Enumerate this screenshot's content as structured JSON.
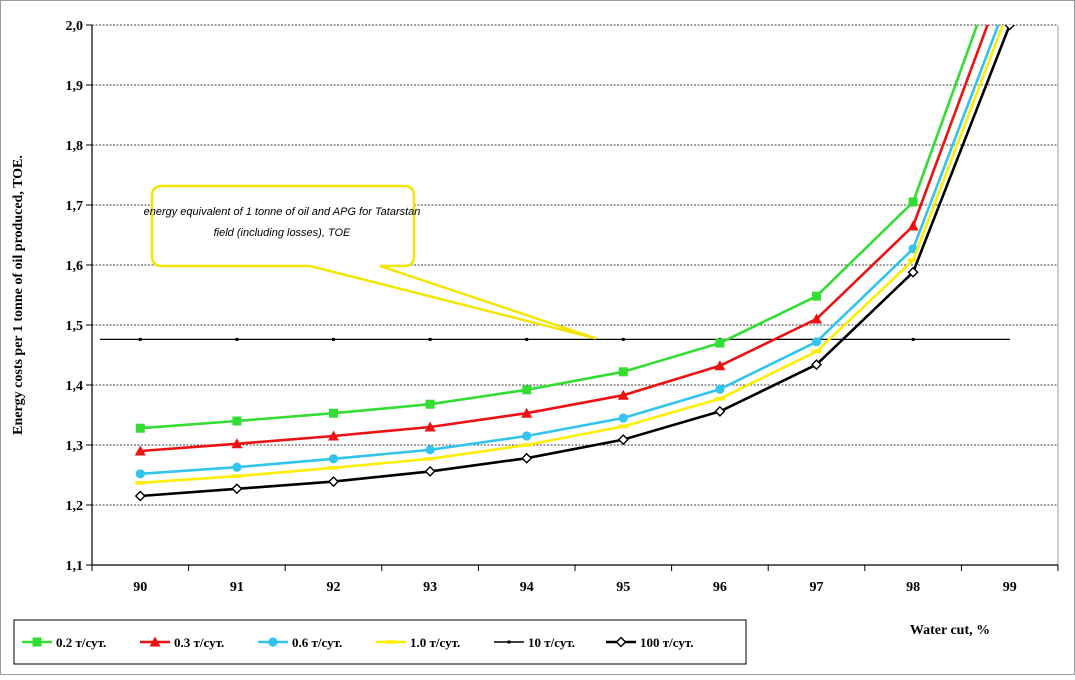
{
  "chart_data": {
    "type": "line",
    "title": "",
    "xlabel": "Water cut, %",
    "ylabel": "Energy costs per 1 tonne of oil produced, TOE.",
    "categories": [
      "90",
      "91",
      "92",
      "93",
      "94",
      "95",
      "96",
      "97",
      "98",
      "99"
    ],
    "y_ticks": [
      "1,1",
      "1,2",
      "1,3",
      "1,4",
      "1,5",
      "1,6",
      "1,7",
      "1,8",
      "1,9",
      "2,0"
    ],
    "ylim": [
      1.1,
      2.0
    ],
    "grid": "horizontal dashed",
    "legend_position": "bottom",
    "series": [
      {
        "name": "0.2 т/сут.",
        "color": "#33dd33",
        "marker": "square",
        "values": [
          1.328,
          1.34,
          1.353,
          1.368,
          1.392,
          1.422,
          1.47,
          1.548,
          1.705,
          2.15
        ]
      },
      {
        "name": "0.3 т/сут.",
        "color": "#ee1111",
        "marker": "triangle",
        "values": [
          1.29,
          1.302,
          1.315,
          1.33,
          1.353,
          1.383,
          1.432,
          1.51,
          1.665,
          2.1
        ]
      },
      {
        "name": "0.6 т/сут.",
        "color": "#33c4ee",
        "marker": "circle",
        "values": [
          1.252,
          1.263,
          1.277,
          1.292,
          1.315,
          1.345,
          1.393,
          1.472,
          1.627,
          2.05
        ]
      },
      {
        "name": "1.0 т/сут.",
        "color": "#ffee00",
        "marker": "dash",
        "values": [
          1.237,
          1.248,
          1.262,
          1.277,
          1.3,
          1.331,
          1.377,
          1.456,
          1.608,
          2.03
        ]
      },
      {
        "name": "10 т/сут.",
        "color": "#000000",
        "marker": "dot",
        "style": "reference",
        "values": [
          1.476,
          1.476,
          1.476,
          1.476,
          1.476,
          1.476,
          1.476,
          1.476,
          1.476,
          1.476
        ]
      },
      {
        "name": "100 т/сут.",
        "color": "#000000",
        "marker": "diamond",
        "values": [
          1.215,
          1.227,
          1.239,
          1.256,
          1.278,
          1.309,
          1.356,
          1.434,
          1.588,
          2.0
        ]
      }
    ],
    "annotation": {
      "text_line1": "energy equivalent of 1 tonne of oil and APG for Tatarstan",
      "text_line2": "field (including losses), TOE",
      "points_to_value": 1.476
    }
  }
}
